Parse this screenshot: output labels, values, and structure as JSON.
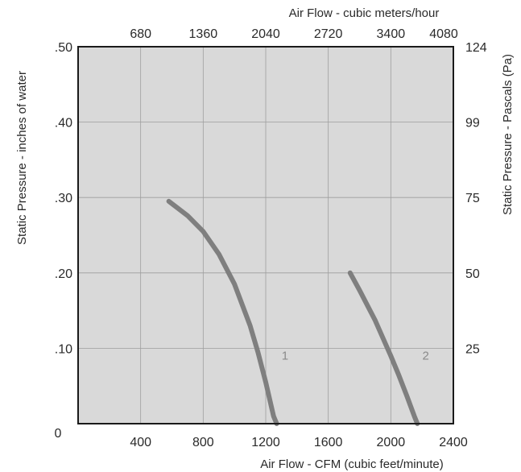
{
  "chart_data": {
    "type": "line",
    "title": "",
    "xlabel": "Air Flow - CFM (cubic feet/minute)",
    "ylabel": "Static Pressure - inches of water",
    "x2label": "Air Flow - cubic meters/hour",
    "y2label": "Static Pressure - Pascals (Pa)",
    "xlim": [
      0,
      2400
    ],
    "ylim": [
      0,
      0.5
    ],
    "x_ticks": [
      {
        "value": 400,
        "label": "400"
      },
      {
        "value": 800,
        "label": "800"
      },
      {
        "value": 1200,
        "label": "1200"
      },
      {
        "value": 1600,
        "label": "1600"
      },
      {
        "value": 2000,
        "label": "2000"
      },
      {
        "value": 2400,
        "label": "2400"
      }
    ],
    "y_ticks": [
      {
        "value": 0,
        "label": "0"
      },
      {
        "value": 0.1,
        "label": ".10"
      },
      {
        "value": 0.2,
        "label": ".20"
      },
      {
        "value": 0.3,
        "label": ".30"
      },
      {
        "value": 0.4,
        "label": ".40"
      },
      {
        "value": 0.5,
        "label": ".50"
      }
    ],
    "x2_ticks": [
      {
        "value": 400,
        "label": "680"
      },
      {
        "value": 800,
        "label": "1360"
      },
      {
        "value": 1200,
        "label": "2040"
      },
      {
        "value": 1600,
        "label": "2720"
      },
      {
        "value": 2000,
        "label": "3400"
      },
      {
        "value": 2400,
        "label": "4080"
      }
    ],
    "y2_ticks": [
      {
        "value": 0.1,
        "label": "25"
      },
      {
        "value": 0.2,
        "label": "50"
      },
      {
        "value": 0.3,
        "label": "75"
      },
      {
        "value": 0.4,
        "label": "99"
      },
      {
        "value": 0.5,
        "label": "124"
      }
    ],
    "grid": true,
    "series": [
      {
        "label": "1",
        "x": [
          580,
          700,
          800,
          900,
          1000,
          1100,
          1150,
          1200,
          1250,
          1270
        ],
        "y": [
          0.295,
          0.276,
          0.255,
          0.225,
          0.185,
          0.13,
          0.095,
          0.055,
          0.01,
          0.0
        ]
      },
      {
        "label": "2",
        "x": [
          1740,
          1800,
          1900,
          2000,
          2050,
          2100,
          2150,
          2170
        ],
        "y": [
          0.2,
          0.177,
          0.137,
          0.09,
          0.065,
          0.038,
          0.01,
          0.0
        ]
      }
    ],
    "colors": {
      "plot_background": "#d9d9d9",
      "grid": "#9e9e9e",
      "frame": "#1a1a1a",
      "series": "#7f7f7f",
      "series_label": "#8a8a8a"
    }
  }
}
